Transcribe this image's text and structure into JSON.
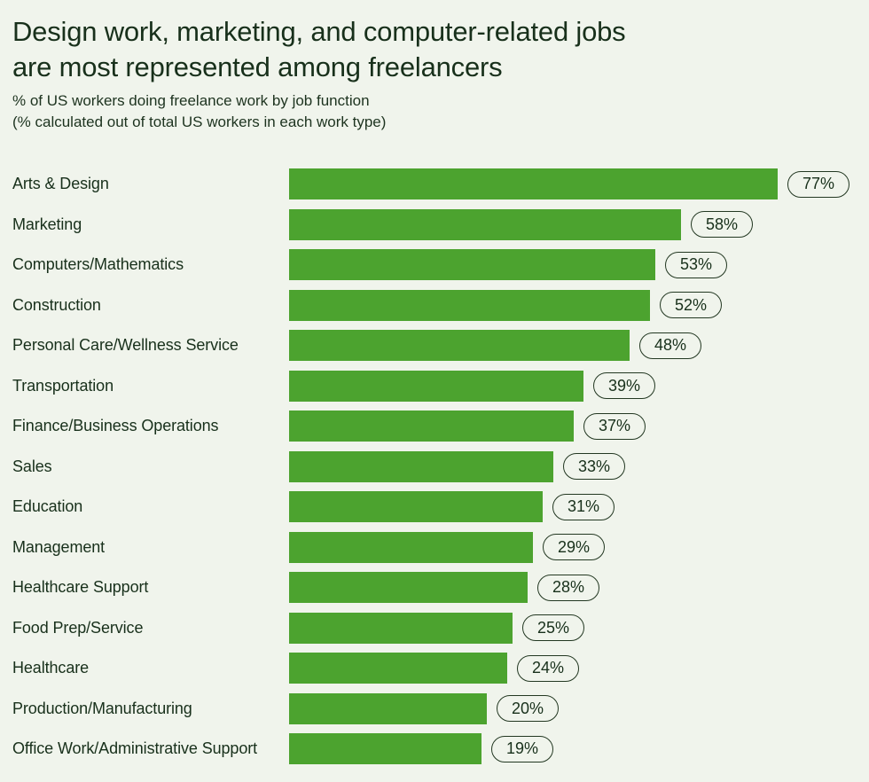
{
  "page": {
    "background_color": "#f0f4ec",
    "text_color": "#18301b"
  },
  "header": {
    "title_line1": "Design work, marketing, and computer-related jobs",
    "title_line2": "are most represented among freelancers",
    "subtitle_line1": "% of US workers doing freelance work by job function",
    "subtitle_line2": "(% calculated out of total US workers in each work type)"
  },
  "chart_data": {
    "type": "bar",
    "orientation": "horizontal",
    "title": "Design work, marketing, and computer-related jobs are most represented among freelancers",
    "subtitle": "% of US workers doing freelance work by job function (% calculated out of total US workers in each work type)",
    "xlabel": "",
    "ylabel": "",
    "xlim": [
      0,
      100
    ],
    "grid": false,
    "legend": "none",
    "value_suffix": "%",
    "bar_color": "#4ca32f",
    "pill_border_color": "#233822",
    "categories": [
      "Arts & Design",
      "Marketing",
      "Computers/Mathematics",
      "Construction",
      "Personal Care/Wellness Service",
      "Transportation",
      "Finance/Business Operations",
      "Sales",
      "Education",
      "Management",
      "Healthcare Support",
      "Food Prep/Service",
      "Healthcare",
      "Production/Manufacturing",
      "Office Work/Administrative Support"
    ],
    "values": [
      77,
      58,
      53,
      52,
      48,
      39,
      37,
      33,
      31,
      29,
      28,
      25,
      24,
      20,
      19
    ]
  }
}
